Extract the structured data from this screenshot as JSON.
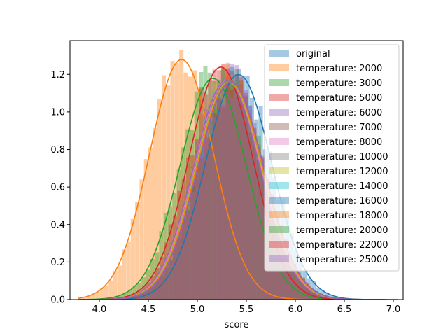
{
  "chart_data": {
    "type": "histogram",
    "title": "",
    "xlabel": "score",
    "ylabel": "",
    "xlim": [
      3.7,
      7.1
    ],
    "ylim": [
      0,
      1.38
    ],
    "x_ticks": [
      "4.0",
      "4.5",
      "5.0",
      "5.5",
      "6.0",
      "6.5",
      "7.0"
    ],
    "y_ticks": [
      "0.0",
      "0.2",
      "0.4",
      "0.6",
      "0.8",
      "1.0",
      "1.2"
    ],
    "legend_position": "top-right",
    "grid": false,
    "series": [
      {
        "name": "original",
        "color": "#1f77b4",
        "mean": 5.38,
        "sd": 0.34,
        "peak": 1.19,
        "range": [
          3.78,
          7.05
        ]
      },
      {
        "name": "temperature: 2000",
        "color": "#ff7f0e",
        "mean": 4.8,
        "sd": 0.33,
        "peak": 1.27,
        "range": [
          3.78,
          6.46
        ]
      },
      {
        "name": "temperature: 3000",
        "color": "#2ca02c",
        "mean": 5.12,
        "sd": 0.34,
        "peak": 1.17,
        "range": [
          3.8,
          6.6
        ]
      },
      {
        "name": "temperature: 5000",
        "color": "#d62728",
        "mean": 5.2,
        "sd": 0.33,
        "peak": 1.23,
        "range": [
          3.85,
          6.7
        ]
      },
      {
        "name": "temperature: 6000",
        "color": "#9467bd",
        "mean": 5.26,
        "sd": 0.34,
        "peak": 1.16,
        "range": [
          3.85,
          6.8
        ]
      },
      {
        "name": "temperature: 7000",
        "color": "#8c564b",
        "mean": 5.27,
        "sd": 0.34,
        "peak": 1.16,
        "range": [
          3.85,
          6.8
        ]
      },
      {
        "name": "temperature: 8000",
        "color": "#e377c2",
        "mean": 5.27,
        "sd": 0.34,
        "peak": 1.16,
        "range": [
          3.85,
          6.8
        ]
      },
      {
        "name": "temperature: 10000",
        "color": "#7f7f7f",
        "mean": 5.28,
        "sd": 0.34,
        "peak": 1.16,
        "range": [
          3.85,
          6.85
        ]
      },
      {
        "name": "temperature: 12000",
        "color": "#bcbd22",
        "mean": 5.28,
        "sd": 0.34,
        "peak": 1.15,
        "range": [
          3.85,
          6.85
        ]
      },
      {
        "name": "temperature: 14000",
        "color": "#17becf",
        "mean": 5.29,
        "sd": 0.34,
        "peak": 1.15,
        "range": [
          3.85,
          6.85
        ]
      },
      {
        "name": "temperature: 16000",
        "color": "#1f77b4",
        "mean": 5.29,
        "sd": 0.34,
        "peak": 1.15,
        "range": [
          3.85,
          6.85
        ]
      },
      {
        "name": "temperature: 18000",
        "color": "#ff7f0e",
        "mean": 5.29,
        "sd": 0.34,
        "peak": 1.15,
        "range": [
          3.85,
          6.85
        ]
      },
      {
        "name": "temperature: 20000",
        "color": "#2ca02c",
        "mean": 5.3,
        "sd": 0.34,
        "peak": 1.15,
        "range": [
          3.85,
          6.9
        ]
      },
      {
        "name": "temperature: 22000",
        "color": "#d62728",
        "mean": 5.3,
        "sd": 0.34,
        "peak": 1.15,
        "range": [
          3.85,
          6.9
        ]
      },
      {
        "name": "temperature: 25000",
        "color": "#9467bd",
        "mean": 5.3,
        "sd": 0.34,
        "peak": 1.15,
        "range": [
          3.85,
          6.9
        ]
      }
    ]
  }
}
